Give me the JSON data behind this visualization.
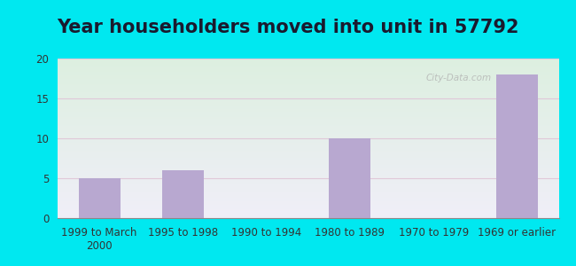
{
  "title": "Year householders moved into unit in 57792",
  "categories": [
    "1999 to March\n2000",
    "1995 to 1998",
    "1990 to 1994",
    "1980 to 1989",
    "1970 to 1979",
    "1969 or earlier"
  ],
  "values": [
    5,
    6,
    0,
    10,
    0,
    18
  ],
  "bar_color": "#b8a8d0",
  "ylim": [
    0,
    20
  ],
  "yticks": [
    0,
    5,
    10,
    15,
    20
  ],
  "background_outer": "#00e8f0",
  "background_plot_top": "#ddf0e0",
  "background_plot_bottom": "#f0eef8",
  "grid_color": "#e0c8d8",
  "title_fontsize": 15,
  "tick_fontsize": 8.5,
  "watermark": "City-Data.com"
}
